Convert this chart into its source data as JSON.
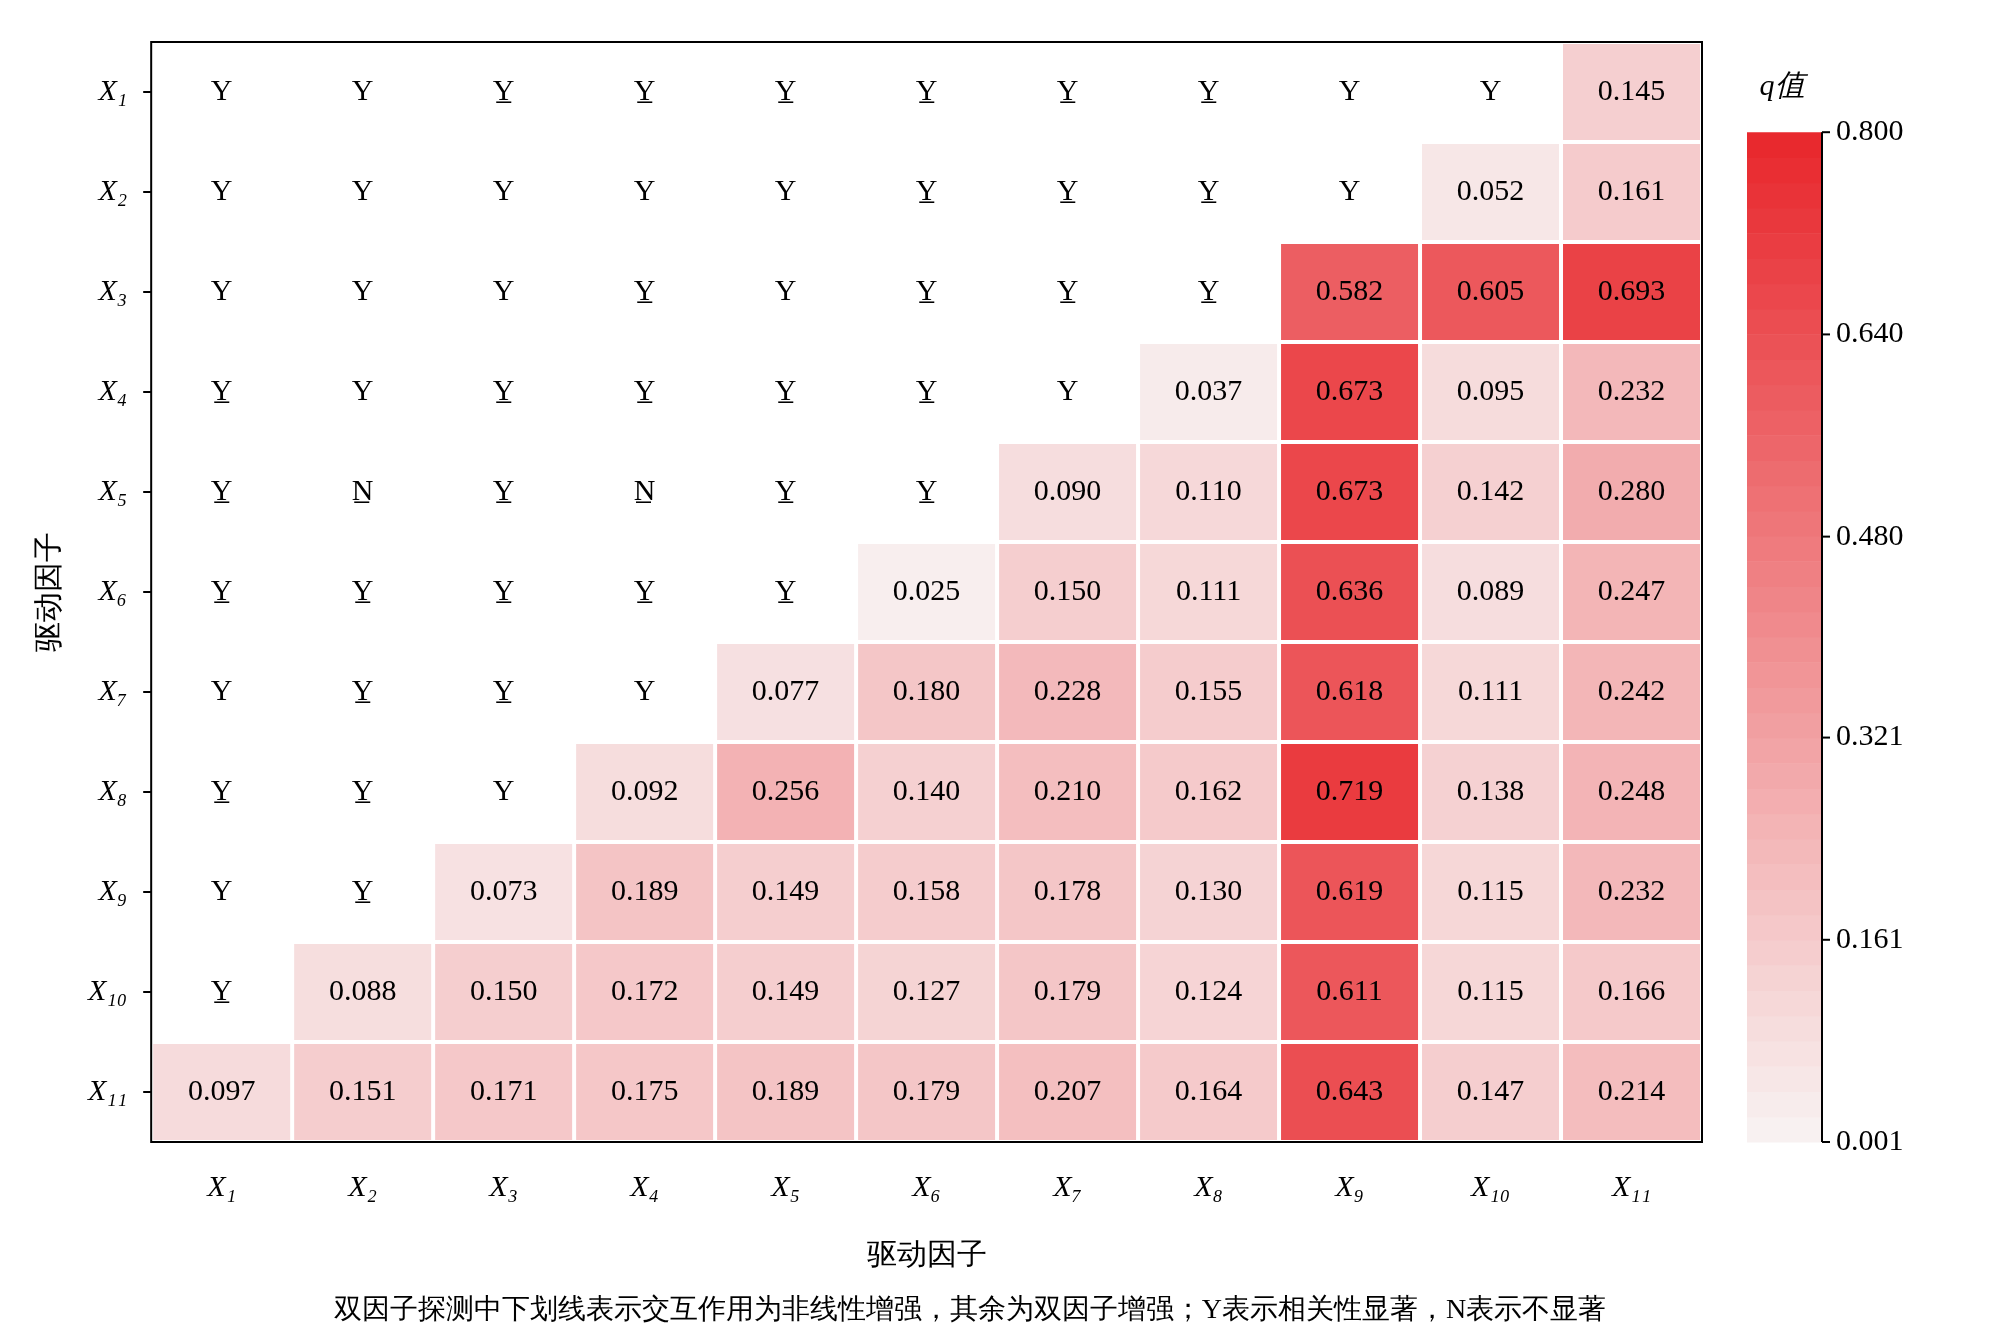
{
  "chart_data": {
    "type": "heatmap",
    "xlabel": "驱动因子",
    "ylabel": "驱动因子",
    "clabel": "q值",
    "categories": [
      "X₁",
      "X₂",
      "X₃",
      "X₄",
      "X₅",
      "X₆",
      "X₇",
      "X₈",
      "X₉",
      "X₁₀",
      "X₁₁"
    ],
    "y_categories": [
      "X₁",
      "X₂",
      "X₃",
      "X₄",
      "X₅",
      "X₆",
      "X₇",
      "X₈",
      "X₉",
      "X₁₀",
      "X₁₁"
    ],
    "cells": [
      [
        null,
        null,
        null,
        null,
        null,
        null,
        null,
        null,
        null,
        null,
        0.145
      ],
      [
        null,
        null,
        null,
        null,
        null,
        null,
        null,
        null,
        null,
        0.052,
        0.161
      ],
      [
        null,
        null,
        null,
        null,
        null,
        null,
        null,
        null,
        0.582,
        0.605,
        0.693
      ],
      [
        null,
        null,
        null,
        null,
        null,
        null,
        null,
        0.037,
        0.673,
        0.095,
        0.232
      ],
      [
        null,
        null,
        null,
        null,
        null,
        null,
        0.09,
        0.11,
        0.673,
        0.142,
        0.28
      ],
      [
        null,
        null,
        null,
        null,
        null,
        0.025,
        0.15,
        0.111,
        0.636,
        0.089,
        0.247
      ],
      [
        null,
        null,
        null,
        null,
        0.077,
        0.18,
        0.228,
        0.155,
        0.618,
        0.111,
        0.242
      ],
      [
        null,
        null,
        null,
        0.092,
        0.256,
        0.14,
        0.21,
        0.162,
        0.719,
        0.138,
        0.248
      ],
      [
        null,
        null,
        0.073,
        0.189,
        0.149,
        0.158,
        0.178,
        0.13,
        0.619,
        0.115,
        0.232
      ],
      [
        null,
        0.088,
        0.15,
        0.172,
        0.149,
        0.127,
        0.179,
        0.124,
        0.611,
        0.115,
        0.166
      ],
      [
        0.097,
        0.151,
        0.171,
        0.175,
        0.189,
        0.179,
        0.207,
        0.164,
        0.643,
        0.147,
        0.214
      ]
    ],
    "cell_labels": [
      [
        "Y",
        "Y",
        "Y̲",
        "Y̲",
        "Y̲",
        "Y̲",
        "Y̲",
        "Y̲",
        "Y",
        "Y",
        "0.145"
      ],
      [
        "Y",
        "Y",
        "Y",
        "Y",
        "Y",
        "Y̲",
        "Y̲",
        "Y̲",
        "Y",
        "0.052",
        "0.161"
      ],
      [
        "Y",
        "Y",
        "Y",
        "Y̲",
        "Y",
        "Y̲",
        "Y̲",
        "Y̲",
        "0.582",
        "0.605",
        "0.693"
      ],
      [
        "Y̲",
        "Y",
        "Y̲",
        "Y̲",
        "Y̲",
        "Y̲",
        "Y",
        "0.037",
        "0.673",
        "0.095",
        "0.232"
      ],
      [
        "Y̲",
        "N̲",
        "Y̲",
        "N̲",
        "Y̲",
        "Y̲",
        "0.090",
        "0.110",
        "0.673",
        "0.142",
        "0.280"
      ],
      [
        "Y̲",
        "Y̲",
        "Y̲",
        "Y̲",
        "Y̲",
        "0.025",
        "0.150",
        "0.111",
        "0.636",
        "0.089",
        "0.247"
      ],
      [
        "Y",
        "Y̲",
        "Y̲",
        "Y",
        "0.077",
        "0.180",
        "0.228",
        "0.155",
        "0.618",
        "0.111",
        "0.242"
      ],
      [
        "Y̲",
        "Y̲",
        "Y",
        "0.092",
        "0.256",
        "0.140",
        "0.210",
        "0.162",
        "0.719",
        "0.138",
        "0.248"
      ],
      [
        "Y",
        "Y̲",
        "0.073",
        "0.189",
        "0.149",
        "0.158",
        "0.178",
        "0.130",
        "0.619",
        "0.115",
        "0.232"
      ],
      [
        "Y̲",
        "0.088",
        "0.150",
        "0.172",
        "0.149",
        "0.127",
        "0.179",
        "0.124",
        "0.611",
        "0.115",
        "0.166"
      ],
      [
        "0.097",
        "0.151",
        "0.171",
        "0.175",
        "0.189",
        "0.179",
        "0.207",
        "0.164",
        "0.643",
        "0.147",
        "0.214"
      ]
    ],
    "clim": [
      0.001,
      0.8
    ],
    "cticks": [
      0.001,
      0.161,
      0.321,
      {
        "value": 0.48,
        "label": "0.480"
      },
      {
        "value": 0.64,
        "label": "0.640"
      },
      {
        "value": 0.8,
        "label": "0.800"
      }
    ],
    "annotations": [
      "双因子探测中下划线表示交互作用为非线性增强，其余为双因子增强；Y表示相关性显著，N表示不显著"
    ]
  }
}
